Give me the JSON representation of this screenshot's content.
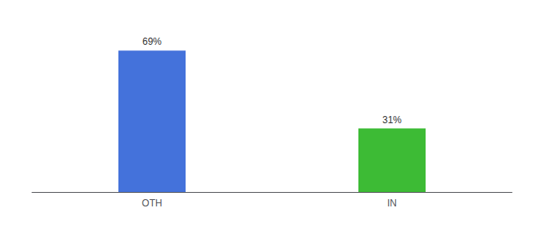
{
  "chart_data": {
    "type": "bar",
    "categories": [
      "OTH",
      "IN"
    ],
    "values": [
      69,
      31
    ],
    "value_labels": [
      "69%",
      "31%"
    ],
    "colors": [
      "#4472db",
      "#3dbb35"
    ],
    "ylim": [
      0,
      82
    ],
    "data_labels": true,
    "tick_labels": "x",
    "grid": false
  }
}
